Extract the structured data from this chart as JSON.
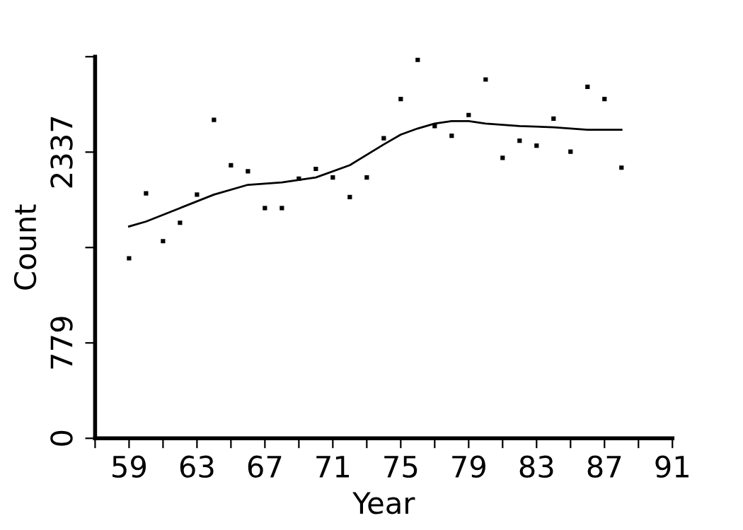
{
  "chart_data": {
    "type": "scatter",
    "xlabel": "Year",
    "ylabel": "Count",
    "xlim": [
      57,
      91
    ],
    "ylim": [
      0,
      3116
    ],
    "xticks": [
      {
        "value": 57,
        "label": null
      },
      59,
      {
        "value": 61,
        "label": null
      },
      63,
      {
        "value": 65,
        "label": null
      },
      67,
      {
        "value": 69,
        "label": null
      },
      71,
      {
        "value": 73,
        "label": null
      },
      75,
      {
        "value": 77,
        "label": null
      },
      79,
      {
        "value": 81,
        "label": null
      },
      83,
      {
        "value": 85,
        "label": null
      },
      87,
      {
        "value": 89,
        "label": null
      },
      91
    ],
    "yticks": [
      0,
      779,
      {
        "value": 1558,
        "label": null
      },
      2337,
      {
        "value": 3116,
        "label": null
      }
    ],
    "grid": false,
    "legend": false,
    "series": [
      {
        "marker": "square",
        "color": "#000000",
        "x": [
          59,
          60,
          61,
          62,
          63,
          64,
          65,
          66,
          67,
          68,
          69,
          70,
          71,
          72,
          73,
          74,
          75,
          76,
          77,
          78,
          79,
          80,
          81,
          82,
          83,
          84,
          85,
          86,
          87,
          88
        ],
        "values": [
          1470,
          2000,
          1610,
          1760,
          1990,
          2600,
          2230,
          2180,
          1880,
          1880,
          2120,
          2200,
          2130,
          1970,
          2130,
          2450,
          2770,
          3090,
          2550,
          2470,
          2640,
          2930,
          2290,
          2430,
          2390,
          2610,
          2340,
          2870,
          2770,
          2210
        ]
      },
      {
        "type": "line",
        "marker": "none",
        "line_style": "solid",
        "color": "#000000",
        "x": [
          59,
          60,
          62,
          64,
          66,
          68,
          70,
          72,
          74,
          75,
          76,
          77,
          78,
          79,
          80,
          82,
          84,
          86,
          88
        ],
        "values": [
          1730,
          1770,
          1880,
          1990,
          2070,
          2090,
          2130,
          2230,
          2400,
          2480,
          2530,
          2570,
          2590,
          2590,
          2570,
          2550,
          2540,
          2520,
          2520
        ]
      }
    ]
  }
}
